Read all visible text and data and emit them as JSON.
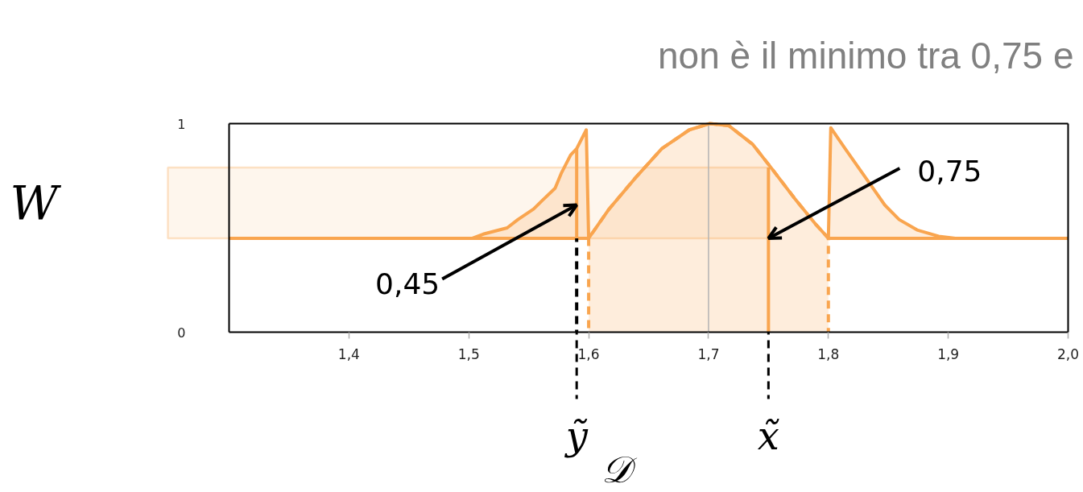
{
  "chart_data": {
    "type": "line",
    "title": "non è il minimo tra 0,75 e",
    "xlim": [
      1.3,
      2.0
    ],
    "xticks": [
      {
        "value": 1.4,
        "label": "1,4"
      },
      {
        "value": 1.5,
        "label": "1,5"
      },
      {
        "value": 1.6,
        "label": "1,6"
      },
      {
        "value": 1.7,
        "label": "1,7"
      },
      {
        "value": 1.8,
        "label": "1,8"
      },
      {
        "value": 1.9,
        "label": "1,9"
      },
      {
        "value": 2.0,
        "label": "2,0"
      }
    ],
    "ylim": [
      0,
      1
    ],
    "yticks": [
      0,
      1
    ],
    "series": [
      {
        "type": "area",
        "color": "#f9a54f",
        "line_style": "dashed",
        "x": [
          1.6,
          1.617,
          1.639,
          1.661,
          1.684,
          1.701,
          1.717,
          1.737,
          1.752,
          1.772,
          1.789,
          1.8
        ],
        "values": [
          0.45,
          0.59,
          0.74,
          0.88,
          0.97,
          1.0,
          0.99,
          0.9,
          0.79,
          0.64,
          0.52,
          0.45
        ]
      },
      {
        "color": "#f9a54f",
        "x": [
          1.503,
          1.512,
          1.532,
          1.541,
          1.554,
          1.561,
          1.572,
          1.577,
          1.585,
          1.59,
          1.598,
          1.6,
          1.617,
          1.639,
          1.661,
          1.684,
          1.701,
          1.717,
          1.737,
          1.752,
          1.772,
          1.789,
          1.8,
          1.802,
          1.814,
          1.825,
          1.836,
          1.847,
          1.859,
          1.874,
          1.892,
          1.906
        ],
        "values": [
          0.45,
          0.47,
          0.5,
          0.54,
          0.59,
          0.63,
          0.69,
          0.76,
          0.85,
          0.88,
          0.97,
          0.45,
          0.59,
          0.74,
          0.88,
          0.97,
          1.0,
          0.99,
          0.9,
          0.79,
          0.64,
          0.52,
          0.45,
          0.98,
          0.88,
          0.79,
          0.7,
          0.61,
          0.54,
          0.49,
          0.46,
          0.45
        ],
        "lower": [
          0.45,
          0.45,
          0.45,
          0.45,
          0.45,
          0.45,
          0.45,
          0.45,
          0.45,
          0.45,
          0.45,
          0.45,
          null,
          null,
          null,
          null,
          null,
          null,
          null,
          null,
          null,
          null,
          0.45,
          0.45,
          0.45,
          0.45,
          0.45,
          0.45,
          0.45,
          0.45,
          0.45,
          0.45
        ],
        "upper": [
          0.45,
          0.47,
          0.5,
          0.54,
          0.59,
          0.63,
          0.69,
          0.76,
          0.85,
          0.88,
          0.97,
          0.45,
          null,
          null,
          null,
          null,
          null,
          null,
          null,
          null,
          null,
          null,
          0.45,
          0.98,
          0.88,
          0.79,
          0.7,
          0.61,
          0.54,
          0.49,
          0.46,
          0.45
        ]
      },
      {
        "color": "#f9a54f",
        "x": [
          1.3,
          1.6,
          1.7,
          1.8,
          2.0
        ],
        "values": [
          0.45,
          0.45,
          null,
          0.45,
          0.45
        ]
      },
      {
        "color": "#000000",
        "line_style": "dashed",
        "x": [
          1.59,
          1.59
        ],
        "values": [
          0,
          0.45
        ]
      },
      {
        "color": "#f9a54f",
        "x": [
          1.59,
          1.59
        ],
        "values": [
          0.45,
          0.88
        ]
      },
      {
        "color": "#f9a54f",
        "x": [
          1.75,
          1.75
        ],
        "values": [
          0,
          0.79
        ]
      }
    ],
    "ref_lines": [
      {
        "axis": "x",
        "value": 1.7,
        "color": "#b3b3b3"
      },
      {
        "axis": "x",
        "value": 1.59,
        "label": "ỹ",
        "color": "#000000",
        "line_style": "dashed"
      },
      {
        "axis": "x",
        "value": 1.75,
        "label": "x̃",
        "color": "#000000",
        "line_style": "dashed"
      }
    ],
    "bands": [
      {
        "axis": "y",
        "from": 0.45,
        "to": 0.79,
        "label": "W",
        "color": "#f9a54f"
      }
    ],
    "annotations": [
      {
        "text": "0,45",
        "x": 1.59,
        "y": 0.61
      },
      {
        "text": "0,75",
        "x": 1.75,
        "y": 0.45
      },
      "𝒟"
    ]
  }
}
